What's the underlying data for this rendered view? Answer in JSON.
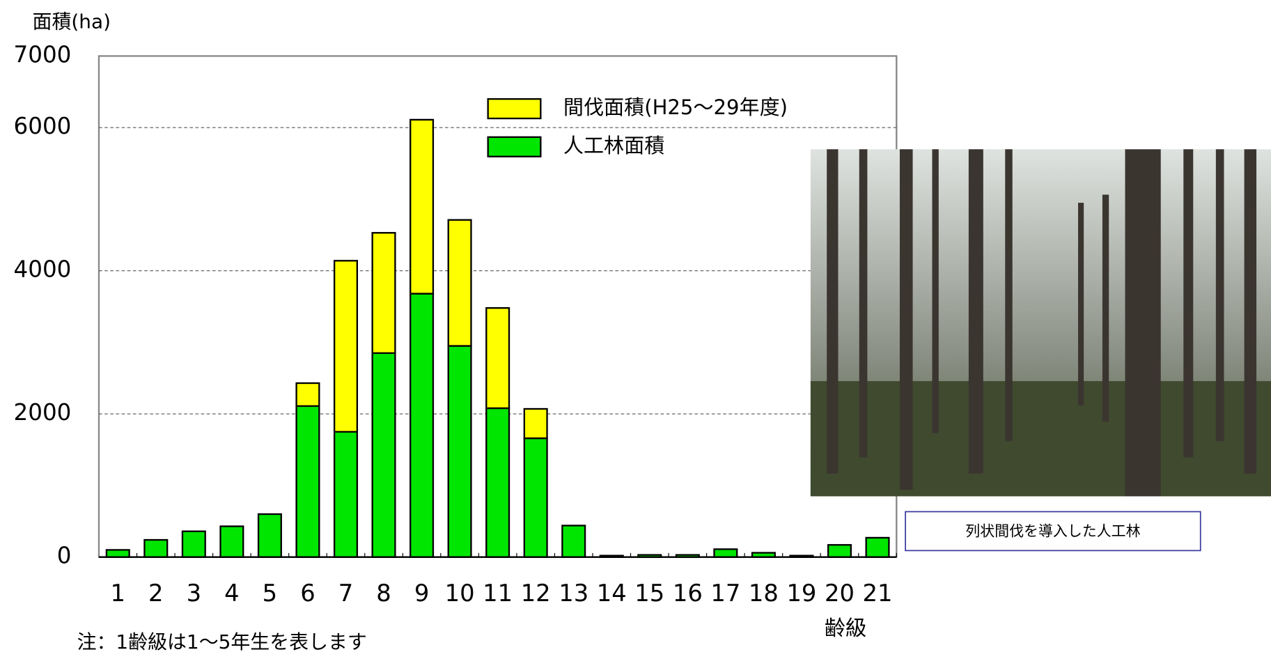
{
  "chart_data": {
    "type": "stacked_bar",
    "y_axis_label": "面積(ha)",
    "x_axis_label": "齢級",
    "note": "注：1齢級は1～5年生を表します",
    "photo_caption": "列状間伐を導入した人工林",
    "categories": [
      "1",
      "2",
      "3",
      "4",
      "5",
      "6",
      "7",
      "8",
      "9",
      "10",
      "11",
      "12",
      "13",
      "14",
      "15",
      "16",
      "17",
      "18",
      "19",
      "20",
      "21"
    ],
    "series": [
      {
        "name": "人工林面積",
        "color": "#00e600",
        "values": [
          100,
          240,
          360,
          430,
          600,
          2110,
          1750,
          2850,
          3680,
          2950,
          2080,
          1660,
          440,
          20,
          30,
          30,
          110,
          60,
          20,
          170,
          270
        ]
      },
      {
        "name": "間伐面積(H25～29年度)",
        "color": "#ffff00",
        "values": [
          0,
          0,
          0,
          0,
          0,
          320,
          2390,
          1680,
          2430,
          1760,
          1400,
          410,
          0,
          0,
          0,
          0,
          0,
          0,
          0,
          0,
          0
        ]
      }
    ],
    "ylim": [
      0,
      7000
    ],
    "yticks": [
      0,
      2000,
      4000,
      6000,
      7000
    ],
    "grid": true
  }
}
